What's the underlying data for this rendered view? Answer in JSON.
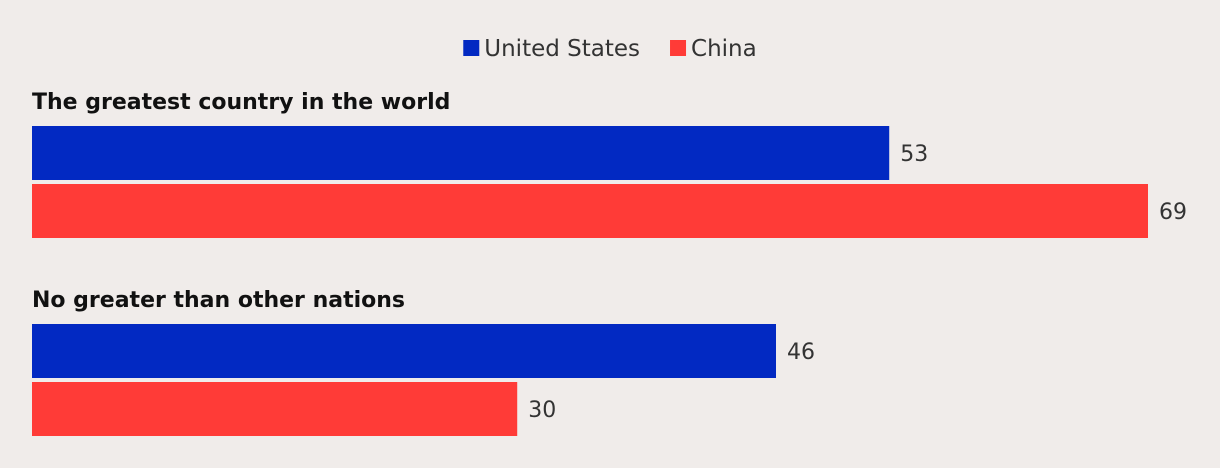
{
  "chart_data": {
    "type": "bar",
    "orientation": "horizontal",
    "categories": [
      "The greatest country in the world",
      "No greater than other nations"
    ],
    "series": [
      {
        "name": "United States",
        "color": "#0229c2",
        "values": [
          53,
          46
        ]
      },
      {
        "name": "China",
        "color": "#ff3b37",
        "values": [
          69,
          30
        ]
      }
    ],
    "xlim": [
      0,
      69
    ],
    "legend": "top-center",
    "grid": false
  }
}
